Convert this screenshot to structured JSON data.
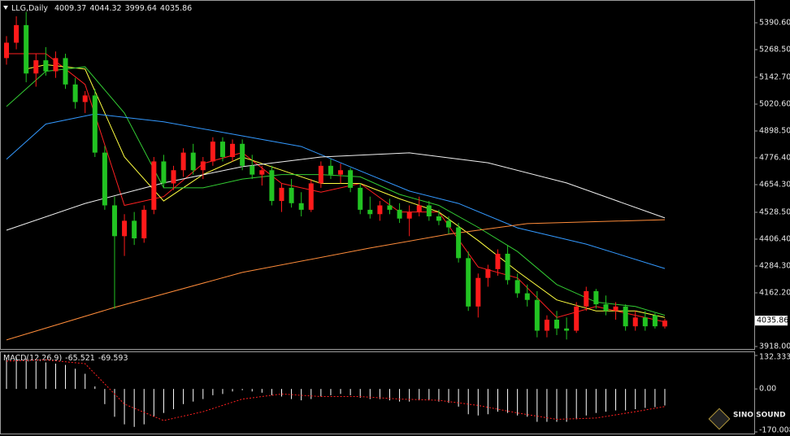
{
  "chart_data": {
    "type": "candlestick",
    "title": "LLG,Daily",
    "up_color": "#ff1a1a",
    "down_color": "#22c322",
    "open": [
      5230,
      5300,
      5380,
      5160,
      5220,
      5170,
      5230,
      5110,
      5030,
      5060,
      4800,
      4560,
      4420,
      4490,
      4410,
      4540,
      4760,
      4660,
      4720,
      4800,
      4720,
      4760,
      4850,
      4780,
      4840,
      4740,
      4700,
      4720,
      4580,
      4640,
      4570,
      4540,
      4660,
      4740,
      4700,
      4720,
      4640,
      4540,
      4520,
      4560,
      4540,
      4500,
      4530,
      4560,
      4510,
      4490,
      4460,
      4320,
      4100,
      4230,
      4270,
      4340,
      4220,
      4160,
      4130,
      3990,
      4040,
      4000,
      3990,
      4100,
      4170,
      4110,
      4080,
      4100,
      4010,
      4050,
      4060,
      4009.37
    ],
    "high": [
      5330,
      5420,
      5440,
      5250,
      5280,
      5260,
      5250,
      5140,
      5080,
      5090,
      4830,
      4600,
      4520,
      4530,
      4560,
      4780,
      4790,
      4740,
      4820,
      4840,
      4780,
      4870,
      4870,
      4860,
      4860,
      4790,
      4740,
      4740,
      4660,
      4680,
      4620,
      4680,
      4760,
      4770,
      4750,
      4730,
      4660,
      4600,
      4580,
      4590,
      4570,
      4560,
      4600,
      4580,
      4540,
      4510,
      4480,
      4350,
      4250,
      4290,
      4360,
      4380,
      4250,
      4200,
      4170,
      4060,
      4080,
      4050,
      4120,
      4190,
      4180,
      4150,
      4120,
      4110,
      4080,
      4080,
      4070,
      4044.32
    ],
    "low": [
      5200,
      5270,
      5120,
      5100,
      5150,
      5140,
      5090,
      5000,
      4980,
      4780,
      4540,
      4090,
      4330,
      4380,
      4390,
      4520,
      4640,
      4630,
      4690,
      4700,
      4680,
      4740,
      4760,
      4760,
      4720,
      4680,
      4650,
      4560,
      4530,
      4550,
      4510,
      4530,
      4640,
      4680,
      4660,
      4620,
      4520,
      4500,
      4490,
      4520,
      4480,
      4420,
      4510,
      4490,
      4470,
      4430,
      4300,
      4080,
      4050,
      4190,
      4240,
      4200,
      4140,
      4100,
      3960,
      3960,
      3970,
      3950,
      3980,
      4080,
      4090,
      4060,
      4040,
      3990,
      3990,
      3990,
      4000,
      3999.64
    ],
    "close": [
      5300,
      5380,
      5160,
      5220,
      5170,
      5230,
      5110,
      5030,
      5060,
      4800,
      4560,
      4420,
      4490,
      4410,
      4540,
      4760,
      4660,
      4720,
      4800,
      4720,
      4760,
      4850,
      4780,
      4840,
      4740,
      4700,
      4720,
      4580,
      4640,
      4570,
      4540,
      4660,
      4740,
      4700,
      4720,
      4640,
      4540,
      4520,
      4560,
      4540,
      4500,
      4530,
      4560,
      4510,
      4490,
      4460,
      4320,
      4100,
      4230,
      4270,
      4340,
      4220,
      4160,
      4130,
      3990,
      4040,
      4000,
      3990,
      4100,
      4170,
      4110,
      4080,
      4100,
      4010,
      4050,
      4010,
      4010,
      4035.86
    ],
    "ylim": [
      3903.2,
      5486.8
    ],
    "yticks": [
      {
        "value": 3918.0,
        "label": "3918.00"
      },
      {
        "value": 4162.2,
        "label": "4162.20"
      },
      {
        "value": 4284.3,
        "label": "4284.30"
      },
      {
        "value": 4406.4,
        "label": "4406.40"
      },
      {
        "value": 4528.5,
        "label": "4528.50"
      },
      {
        "value": 4654.3,
        "label": "4654.30"
      },
      {
        "value": 4776.4,
        "label": "4776.40"
      },
      {
        "value": 4898.5,
        "label": "4898.50"
      },
      {
        "value": 5020.6,
        "label": "5020.60"
      },
      {
        "value": 5142.7,
        "label": "5142.70"
      },
      {
        "value": 5268.5,
        "label": "5268.50"
      },
      {
        "value": 5390.6,
        "label": "5390.60"
      }
    ],
    "moving_averages": [
      {
        "color": "#ff2020",
        "x": [
          0,
          4,
          8,
          12,
          16,
          20,
          24,
          28,
          32,
          36,
          40,
          44,
          48,
          52,
          56,
          60,
          64,
          67
        ],
        "values": [
          5250,
          5250,
          5110,
          4560,
          4600,
          4750,
          4800,
          4660,
          4620,
          4660,
          4530,
          4530,
          4280,
          4230,
          4050,
          4100,
          4060,
          4030
        ]
      },
      {
        "color": "#ffff40",
        "x": [
          2,
          4,
          8,
          12,
          16,
          20,
          24,
          28,
          32,
          36,
          40,
          44,
          48,
          52,
          56,
          60,
          64,
          67
        ],
        "values": [
          5180,
          5200,
          5180,
          4780,
          4580,
          4700,
          4780,
          4720,
          4660,
          4660,
          4590,
          4530,
          4400,
          4260,
          4130,
          4080,
          4080,
          4050
        ]
      },
      {
        "color": "#33cc33",
        "x": [
          0,
          4,
          8,
          12,
          16,
          20,
          24,
          28,
          32,
          36,
          40,
          44,
          48,
          52,
          56,
          60,
          64,
          67
        ],
        "values": [
          5010,
          5170,
          5190,
          4980,
          4640,
          4640,
          4680,
          4700,
          4700,
          4690,
          4610,
          4560,
          4460,
          4350,
          4200,
          4120,
          4100,
          4060
        ]
      },
      {
        "color": "#3399ff",
        "x": [
          0,
          4,
          9,
          16,
          23,
          30,
          36,
          41,
          46,
          52,
          59,
          67
        ],
        "values": [
          4770,
          4930,
          4976,
          4940,
          4884,
          4828,
          4717,
          4625,
          4569,
          4458,
          4384,
          4273
        ]
      },
      {
        "color": "#f0f0f0",
        "x": [
          0,
          8,
          16,
          24,
          32,
          41,
          49,
          57,
          67
        ],
        "values": [
          4447,
          4569,
          4662,
          4736,
          4780,
          4799,
          4754,
          4662,
          4503
        ]
      },
      {
        "color": "#ff8c3a",
        "x": [
          0,
          11,
          24,
          37,
          45,
          53,
          67
        ],
        "values": [
          3948,
          4096,
          4255,
          4366,
          4429,
          4477,
          4495
        ]
      }
    ],
    "current_price": {
      "value": 4035.86,
      "label": "4035.86"
    },
    "macd": {
      "title": "MACD(12,26,9)",
      "color": "#ffffff",
      "values": [
        120,
        125,
        120,
        110,
        105,
        100,
        95,
        80,
        60,
        10,
        -60,
        -110,
        -140,
        -150,
        -140,
        -110,
        -95,
        -80,
        -60,
        -50,
        -40,
        -25,
        -20,
        -10,
        -5,
        -10,
        -15,
        -25,
        -30,
        -40,
        -45,
        -40,
        -30,
        -25,
        -20,
        -25,
        -35,
        -40,
        -40,
        -45,
        -50,
        -50,
        -45,
        -45,
        -50,
        -55,
        -70,
        -100,
        -105,
        -100,
        -90,
        -95,
        -105,
        -110,
        -130,
        -130,
        -130,
        -130,
        -120,
        -105,
        -95,
        -90,
        -85,
        -85,
        -80,
        -75,
        -72,
        -65.521
      ],
      "signal": {
        "color": "#ff2020",
        "x": [
          0,
          4,
          8,
          12,
          16,
          20,
          24,
          28,
          32,
          36,
          40,
          44,
          48,
          52,
          56,
          60,
          64,
          67
        ],
        "values": [
          110,
          115,
          100,
          -60,
          -125,
          -90,
          -40,
          -20,
          -30,
          -30,
          -40,
          -45,
          -65,
          -95,
          -120,
          -115,
          -90,
          -69.593
        ]
      },
      "ylim": [
        -170.008,
        132.333
      ],
      "yticks": [
        {
          "value": -170.008,
          "label": "-170.008"
        },
        {
          "value": 0,
          "label": "0.00"
        },
        132.333
      ]
    },
    "logo": "SINO SOUND"
  }
}
